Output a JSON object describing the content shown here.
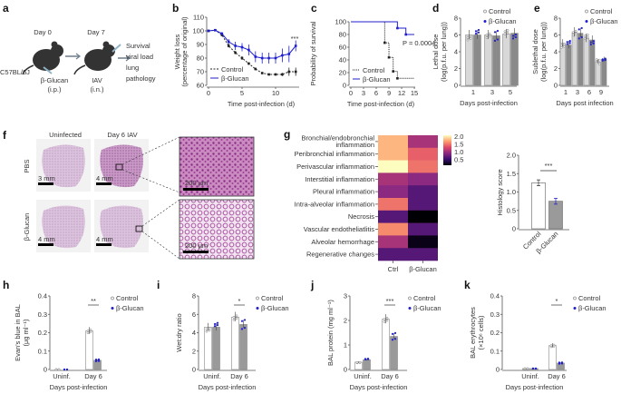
{
  "panel_labels": {
    "a": "a",
    "b": "b",
    "c": "c",
    "d": "d",
    "e": "e",
    "f": "f",
    "g": "g",
    "h": "h",
    "i": "i",
    "j": "j",
    "k": "k"
  },
  "colors": {
    "control": "#222222",
    "glucan": "#1f1fd0",
    "control_bar": "#ffffff",
    "glucan_bar": "#9a9a9a",
    "control_bar_light": "#d8d8d8",
    "glucan_bar_dark": "#8a8a8a"
  },
  "schematic": {
    "day0": "Day 0",
    "day7": "Day 7",
    "strain": "C57BL/6J",
    "treatment": "β-Glucan",
    "treatment_route": "(i.p.)",
    "infection": "IAV",
    "infection_route": "(i.n.)",
    "readouts": [
      "Survival",
      "viral load",
      "lung",
      "pathology"
    ],
    "icons": [
      "mouse-icon",
      "syringe-icon",
      "arrow-right-icon"
    ]
  },
  "chart_data": [
    {
      "id": "b",
      "type": "line",
      "xlabel": "Time post-infection (d)",
      "ylabel": [
        "Weight loss",
        "(percentage of original)"
      ],
      "xlim": [
        0,
        14
      ],
      "ylim": [
        60,
        110
      ],
      "xticks": [
        "0",
        "5",
        "10"
      ],
      "yticks": [
        "60",
        "70",
        "80",
        "90",
        "100",
        "110"
      ],
      "x": [
        0,
        1,
        2,
        3,
        4,
        5,
        6,
        7,
        8,
        9,
        10,
        11,
        12,
        13
      ],
      "series": [
        {
          "name": "Control",
          "values": [
            100,
            100.5,
            97,
            89,
            84,
            80,
            76,
            72,
            69,
            68,
            68,
            68,
            70,
            70
          ],
          "err": [
            0.5,
            0.8,
            1,
            1.2,
            1.2,
            1.3,
            1,
            1,
            0.8,
            0.6,
            0.8,
            1.2,
            3,
            3
          ]
        },
        {
          "name": "β-Glucan",
          "values": [
            100,
            100.5,
            98,
            92,
            89,
            88,
            86,
            81,
            80,
            80,
            80,
            82,
            83,
            89
          ],
          "err": [
            0.5,
            0.8,
            1,
            2,
            3,
            3,
            4,
            4,
            4,
            4,
            4,
            5,
            6,
            4
          ]
        }
      ],
      "annotation": "***"
    },
    {
      "id": "c",
      "type": "line",
      "xlabel": "Time post-infection (d)",
      "ylabel": [
        "Probability of survival"
      ],
      "xlim": [
        0,
        15
      ],
      "ylim": [
        0,
        100
      ],
      "xticks": [
        "0",
        "3",
        "6",
        "9",
        "12",
        "15"
      ],
      "yticks": [
        "0",
        "20",
        "40",
        "60",
        "80",
        "100"
      ],
      "series": [
        {
          "name": "Control",
          "steps": [
            [
              0,
              100
            ],
            [
              8,
              100
            ],
            [
              8,
              67
            ],
            [
              9,
              67
            ],
            [
              9,
              44
            ],
            [
              10,
              44
            ],
            [
              10,
              22
            ],
            [
              11,
              22
            ],
            [
              11,
              11
            ],
            [
              15,
              11
            ]
          ]
        },
        {
          "name": "β-Glucan",
          "steps": [
            [
              0,
              100
            ],
            [
              11,
              100
            ],
            [
              11,
              90
            ],
            [
              13,
              90
            ],
            [
              13,
              80
            ],
            [
              15,
              80
            ]
          ]
        }
      ],
      "annotation": "P = 0.0004"
    },
    {
      "id": "d",
      "type": "bar",
      "xlabel": "Days post-infection",
      "ylabel": [
        "Lethal dose",
        "(log(p.f.u. per lung))"
      ],
      "ylim": [
        0,
        8
      ],
      "yticks": [
        "0",
        "2",
        "4",
        "6",
        "8"
      ],
      "categories": [
        "1",
        "3",
        "5"
      ],
      "series": [
        {
          "name": "Control",
          "values": [
            6.0,
            6.0,
            6.1
          ]
        },
        {
          "name": "β-Glucan",
          "values": [
            6.0,
            5.9,
            6.2
          ]
        }
      ]
    },
    {
      "id": "e",
      "type": "bar",
      "xlabel": "Days post infection",
      "ylabel": [
        "Sublethal dose",
        "(log(p.f.u. per lung))"
      ],
      "ylim": [
        0,
        8
      ],
      "yticks": [
        "0",
        "2",
        "4",
        "6",
        "8"
      ],
      "categories": [
        "1",
        "3",
        "6",
        "9"
      ],
      "series": [
        {
          "name": "Control",
          "values": [
            5.0,
            6.3,
            5.6,
            2.8
          ]
        },
        {
          "name": "β-Glucan",
          "values": [
            4.8,
            6.2,
            5.4,
            3.1
          ]
        }
      ]
    },
    {
      "id": "g",
      "type": "heatmap",
      "columns": [
        "Ctrl",
        "β-Glucan"
      ],
      "rows": [
        {
          "label": [
            "Bronchial/endobronchial",
            "inflammation"
          ],
          "values": [
            1.7,
            1.0
          ]
        },
        {
          "label": [
            "Peribronchial inflammation"
          ],
          "values": [
            1.7,
            1.3
          ]
        },
        {
          "label": [
            "Perivascular inflammation"
          ],
          "values": [
            2.0,
            1.4
          ]
        },
        {
          "label": [
            "Interstitial inflammation"
          ],
          "values": [
            1.0,
            0.9
          ]
        },
        {
          "label": [
            "Pleural inflammation"
          ],
          "values": [
            0.9,
            0.7
          ]
        },
        {
          "label": [
            "Intra-alveolar inflammation"
          ],
          "values": [
            1.4,
            0.7
          ]
        },
        {
          "label": [
            "Necrosis"
          ],
          "values": [
            0.7,
            0.3
          ]
        },
        {
          "label": [
            "Vascular endotheliatlitis"
          ],
          "values": [
            1.5,
            0.7
          ]
        },
        {
          "label": [
            "Alveolar hemorrhage"
          ],
          "values": [
            1.0,
            0.35
          ]
        },
        {
          "label": [
            "Regenerative changes"
          ],
          "values": [
            0.7,
            0.7
          ]
        }
      ],
      "colorbar_ticks": [
        "2.0",
        "1.5",
        "1.0",
        "0.5"
      ],
      "colorscale": "magma"
    },
    {
      "id": "g2",
      "type": "bar",
      "ylabel": [
        "Histology score"
      ],
      "ylim": [
        0,
        2
      ],
      "yticks": [
        "0",
        "0.5",
        "1.0",
        "1.5",
        "2.0"
      ],
      "categories": [
        "Control",
        "β-Glucan"
      ],
      "values": [
        1.25,
        0.75
      ],
      "err": [
        0.08,
        0.08
      ],
      "annotation": "***"
    },
    {
      "id": "h",
      "type": "bar",
      "xlabel": "Days post-infection",
      "ylabel": [
        "Evan's blue in BAL",
        "(µg ml⁻¹)"
      ],
      "ylim": [
        0,
        0.4
      ],
      "yticks": [
        "0",
        "0.1",
        "0.2",
        "0.3",
        "0.4"
      ],
      "categories": [
        "Uninf.",
        "Day 6"
      ],
      "series": [
        {
          "name": "Control",
          "values": [
            0,
            0.21
          ]
        },
        {
          "name": "β-Glucan",
          "values": [
            0,
            0.05
          ]
        }
      ],
      "annotation": "**"
    },
    {
      "id": "i",
      "type": "bar",
      "xlabel": "Days post-infection",
      "ylabel": [
        "Wet:dry ratio"
      ],
      "ylim": [
        0,
        8
      ],
      "yticks": [
        "0",
        "2",
        "4",
        "6",
        "8"
      ],
      "categories": [
        "Uninf.",
        "Day 6"
      ],
      "series": [
        {
          "name": "Control",
          "values": [
            4.6,
            5.7
          ]
        },
        {
          "name": "β-Glucan",
          "values": [
            4.6,
            4.9
          ]
        }
      ],
      "annotation": "*"
    },
    {
      "id": "j",
      "type": "bar",
      "xlabel": "Days post-infection",
      "ylabel": [
        "BAL protein (mg ml⁻¹)"
      ],
      "ylim": [
        0,
        3
      ],
      "yticks": [
        "0",
        "1",
        "2",
        "3"
      ],
      "categories": [
        "Uninf.",
        "Day 6"
      ],
      "series": [
        {
          "name": "Control",
          "values": [
            0.3,
            2.05
          ]
        },
        {
          "name": "β-Glucan",
          "values": [
            0.4,
            1.35
          ]
        }
      ],
      "annotation": "***"
    },
    {
      "id": "k",
      "type": "bar",
      "xlabel": "Days post-infection",
      "ylabel": [
        "BAL erythrocytes",
        "(×10⁶ cells)"
      ],
      "ylim": [
        0,
        0.4
      ],
      "yticks": [
        "0",
        "0.1",
        "0.2",
        "0.3",
        "0.4"
      ],
      "categories": [
        "Uninf.",
        "Day 6"
      ],
      "series": [
        {
          "name": "Control",
          "values": [
            0.005,
            0.13
          ]
        },
        {
          "name": "β-Glucan",
          "values": [
            0.005,
            0.035
          ]
        }
      ],
      "annotation": "*"
    }
  ],
  "histology": {
    "col_headers": [
      "Uninfected",
      "Day 6 IAV"
    ],
    "row_headers": [
      "PBS",
      "β-Glucan"
    ],
    "scale_bars": [
      "3 mm",
      "4 mm",
      "4 mm",
      "4 mm"
    ],
    "zoom_scale_bars": [
      "200 µm",
      "200 µm"
    ]
  }
}
